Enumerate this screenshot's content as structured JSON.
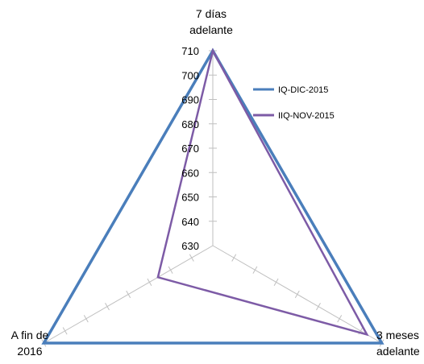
{
  "chart_data": {
    "type": "radar",
    "title": "",
    "categories": [
      "7 días adelante",
      "3 meses adelante",
      "A fin de 2016"
    ],
    "category_lines": [
      [
        "7 días",
        "adelante"
      ],
      [
        "3 meses",
        "adelante"
      ],
      [
        "A fin de",
        "2016"
      ]
    ],
    "rlim": [
      630,
      710
    ],
    "ticks": [
      630,
      640,
      650,
      660,
      670,
      680,
      690,
      700,
      710
    ],
    "grid": true,
    "legend_position": "top-right",
    "series": [
      {
        "name": "IQ-DIC-2015",
        "color": "#4a7ebb",
        "values": [
          710,
          710,
          710
        ]
      },
      {
        "name": "IIQ-NOV-2015",
        "color": "#7d5ba6",
        "values": [
          710,
          703,
          656
        ]
      }
    ]
  }
}
